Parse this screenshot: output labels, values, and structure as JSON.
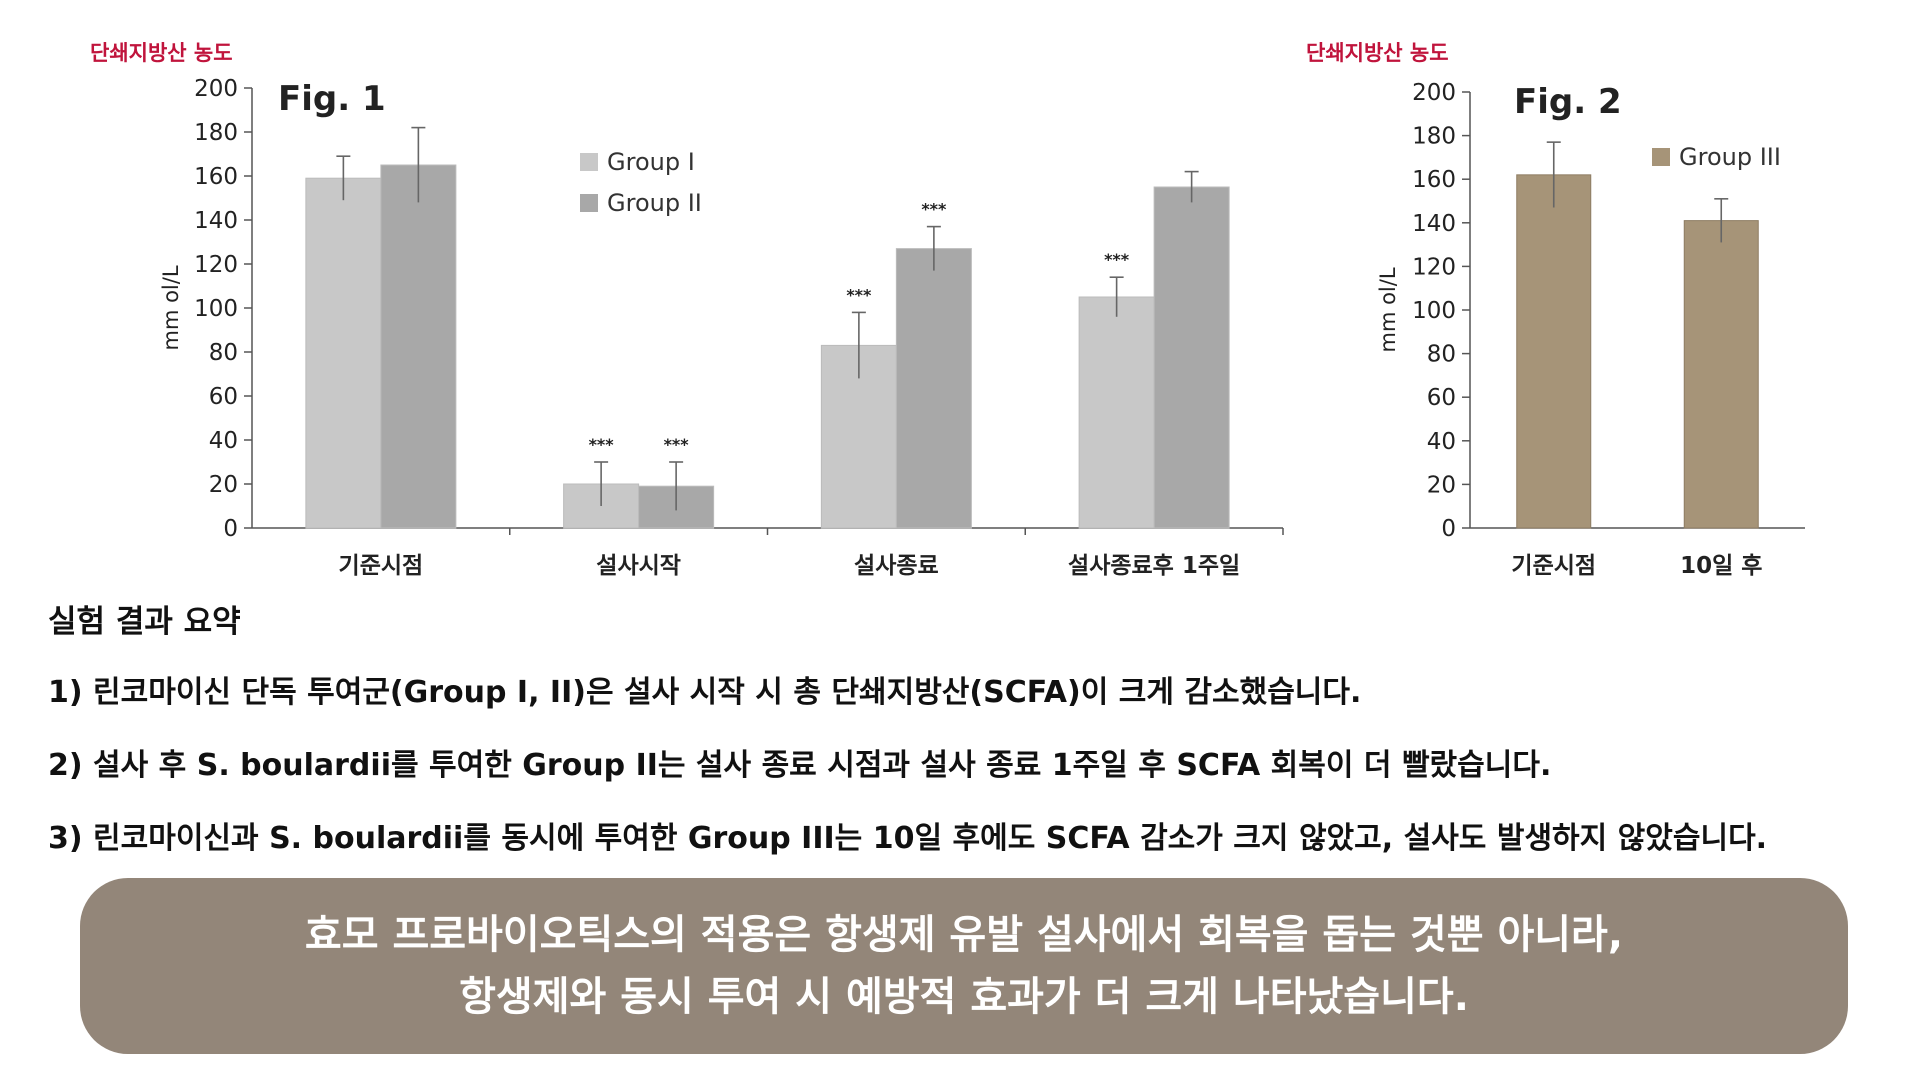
{
  "chart_data": [
    {
      "type": "bar",
      "title": "Fig. 1",
      "top_label": "단쇄지방산 농도",
      "ylabel": "mm ol/L",
      "xlabel": "",
      "ylim": [
        0,
        200
      ],
      "yticks": [
        "200",
        "180",
        "160",
        "140",
        "120",
        "100",
        "80",
        "60",
        "40",
        "20",
        "0"
      ],
      "categories": [
        "기준시점",
        "설사시작",
        "설사종료",
        "설사종료후 1주일"
      ],
      "series": [
        {
          "name": "Group I",
          "color": "#c8c8c8",
          "values": [
            159,
            20,
            83,
            105
          ],
          "errors": [
            10,
            10,
            15,
            9
          ],
          "labels": [
            "",
            "***",
            "***",
            "***"
          ]
        },
        {
          "name": "Group II",
          "color": "#a8a8a8",
          "values": [
            165,
            19,
            127,
            155
          ],
          "errors": [
            17,
            11,
            10,
            7
          ],
          "labels": [
            "",
            "***",
            "***",
            ""
          ]
        }
      ],
      "legend": "top-center",
      "grid": false
    },
    {
      "type": "bar",
      "title": "Fig. 2",
      "top_label": "단쇄지방산 농도",
      "ylabel": "mm ol/L",
      "xlabel": "",
      "ylim": [
        0,
        200
      ],
      "yticks": [
        "200",
        "180",
        "160",
        "140",
        "120",
        "100",
        "80",
        "60",
        "40",
        "20",
        "0"
      ],
      "categories": [
        "기준시점",
        "10일 후"
      ],
      "series": [
        {
          "name": "Group III",
          "color": "#a69478",
          "values": [
            162,
            141
          ],
          "errors": [
            15,
            10
          ],
          "labels": [
            "",
            ""
          ]
        }
      ],
      "legend": "top-right",
      "grid": false
    }
  ],
  "summary": {
    "title": "실험 결과 요약",
    "items": [
      "1) 린코마이신 단독 투여군(Group I, II)은 설사 시작 시 총 단쇄지방산(SCFA)이 크게 감소했습니다.",
      "2) 설사 후 S. boulardii를 투여한 Group II는 설사 종료 시점과 설사 종료 1주일 후 SCFA 회복이 더 빨랐습니다.",
      "3) 린코마이신과 S. boulardii를 동시에 투여한 Group III는 10일 후에도 SCFA 감소가 크지 않았고, 설사도 발생하지 않았습니다."
    ]
  },
  "conclusion": {
    "lines": [
      "효모 프로바이오틱스의 적용은 항생제 유발 설사에서 회복을 돕는 것뿐 아니라,",
      "항생제와 동시 투여 시 예방적 효과가 더 크게 나타났습니다."
    ]
  },
  "colors": {
    "accent_label": "#c0143c",
    "conclusion_bg": "#938679",
    "axis": "#555555"
  }
}
